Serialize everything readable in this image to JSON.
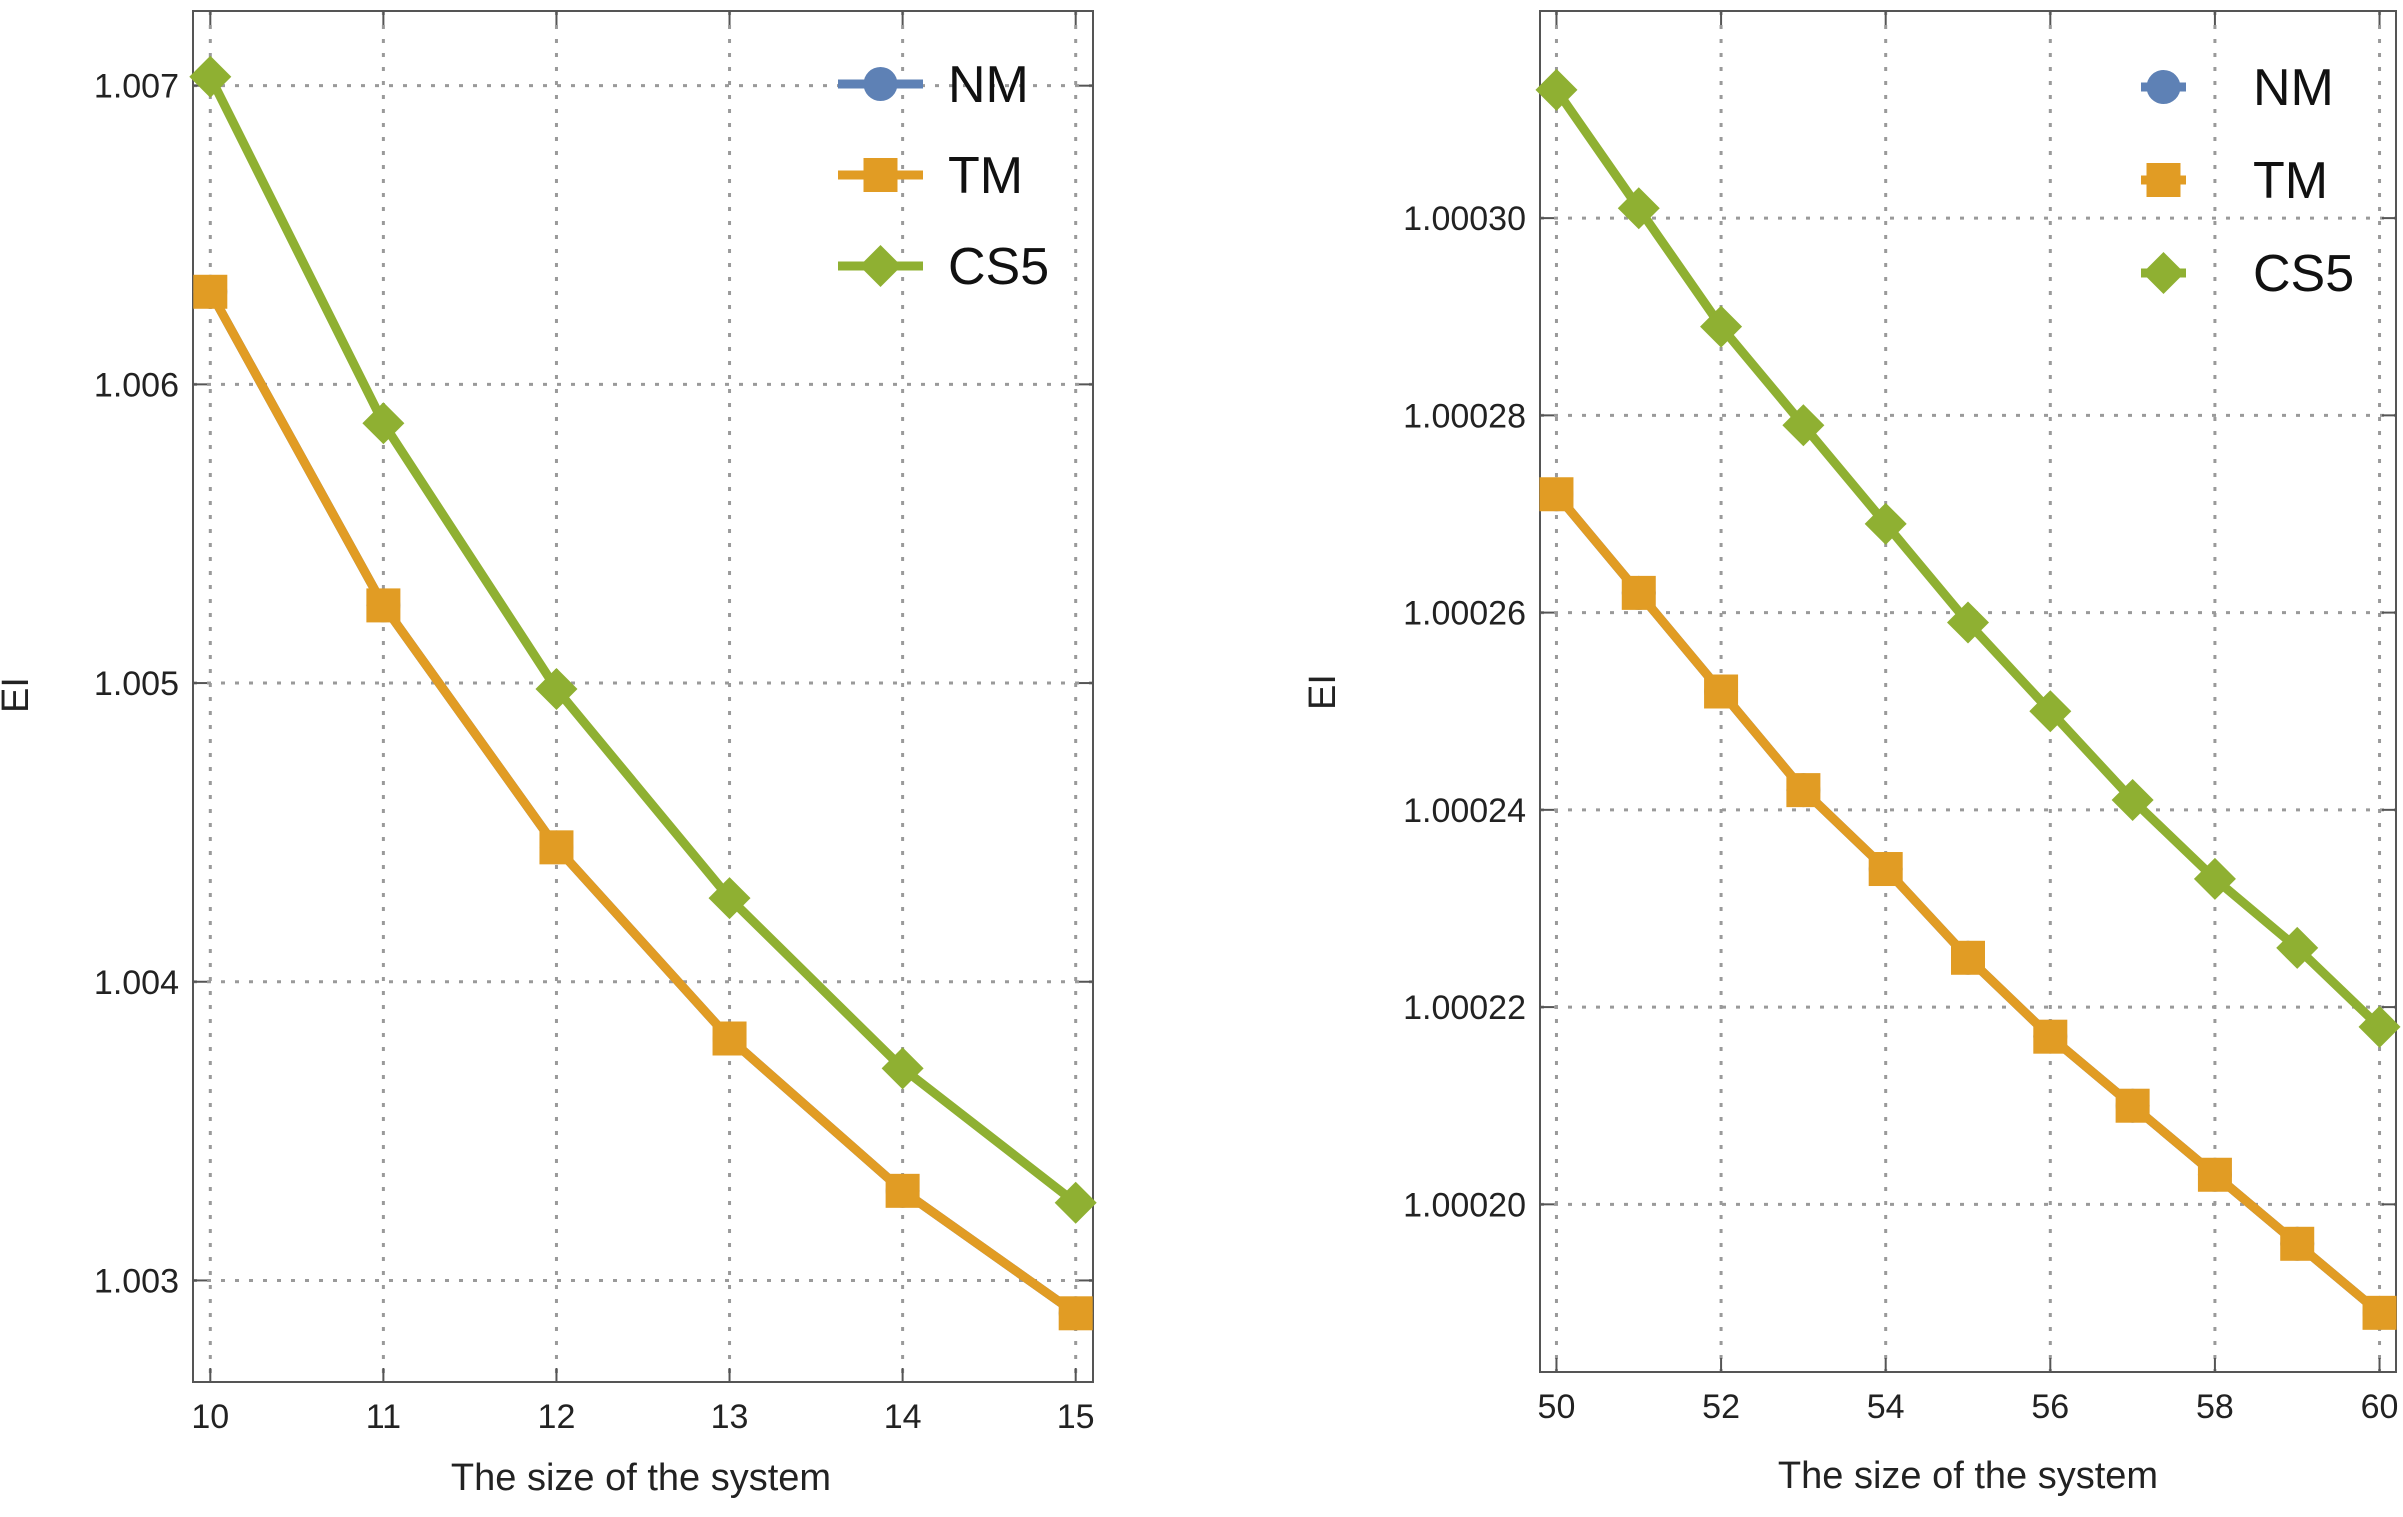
{
  "chart_data": [
    {
      "type": "line",
      "xlabel": "The size of the system",
      "ylabel": "EI",
      "xlim": [
        9.9,
        15.1
      ],
      "ylim": [
        1.00266,
        1.00725
      ],
      "x_ticks": [
        10,
        11,
        12,
        13,
        14,
        15
      ],
      "x_tick_labels": [
        "10",
        "11",
        "12",
        "13",
        "14",
        "15"
      ],
      "y_ticks": [
        1.003,
        1.004,
        1.005,
        1.006,
        1.007
      ],
      "y_tick_labels": [
        "1.003",
        "1.004",
        "1.005",
        "1.006",
        "1.007"
      ],
      "grid": true,
      "legend_position": "top-right",
      "x": [
        10,
        11,
        12,
        13,
        14,
        15
      ],
      "series": [
        {
          "name": "NM",
          "color": "#5e81b5",
          "marker": "circle",
          "values": [
            1.00631,
            1.00526,
            1.00445,
            1.00381,
            1.0033,
            1.00289
          ]
        },
        {
          "name": "TM",
          "color": "#e19c24",
          "marker": "square",
          "values": [
            1.00631,
            1.00526,
            1.00445,
            1.00381,
            1.0033,
            1.00289
          ]
        },
        {
          "name": "CS5",
          "color": "#8fb032",
          "marker": "diamond",
          "values": [
            1.00703,
            1.00587,
            1.00498,
            1.00428,
            1.00371,
            1.00326
          ]
        }
      ]
    },
    {
      "type": "line",
      "xlabel": "The size of the system",
      "ylabel": "EI",
      "xlim": [
        49.8,
        60.2
      ],
      "ylim": [
        1.000183,
        1.000321
      ],
      "x_ticks": [
        50,
        52,
        54,
        56,
        58,
        60
      ],
      "x_tick_labels": [
        "50",
        "52",
        "54",
        "56",
        "58",
        "60"
      ],
      "y_ticks": [
        1.0002,
        1.00022,
        1.00024,
        1.00026,
        1.00028,
        1.0003
      ],
      "y_tick_labels": [
        "1.00020",
        "1.00022",
        "1.00024",
        "1.00026",
        "1.00028",
        "1.00030"
      ],
      "grid": true,
      "legend_position": "top-right",
      "x": [
        50,
        51,
        52,
        53,
        54,
        55,
        56,
        57,
        58,
        59,
        60
      ],
      "series": [
        {
          "name": "NM",
          "color": "#5e81b5",
          "marker": "circle",
          "values": [
            1.000272,
            1.000262,
            1.000252,
            1.000242,
            1.000234,
            1.000225,
            1.000217,
            1.00021,
            1.000203,
            1.000196,
            1.000189
          ]
        },
        {
          "name": "TM",
          "color": "#e19c24",
          "marker": "square",
          "values": [
            1.000272,
            1.000262,
            1.000252,
            1.000242,
            1.000234,
            1.000225,
            1.000217,
            1.00021,
            1.000203,
            1.000196,
            1.000189
          ]
        },
        {
          "name": "CS5",
          "color": "#8fb032",
          "marker": "diamond",
          "values": [
            1.000313,
            1.000301,
            1.000289,
            1.000279,
            1.000269,
            1.000259,
            1.00025,
            1.000241,
            1.000233,
            1.000226,
            1.000218
          ]
        }
      ]
    }
  ]
}
